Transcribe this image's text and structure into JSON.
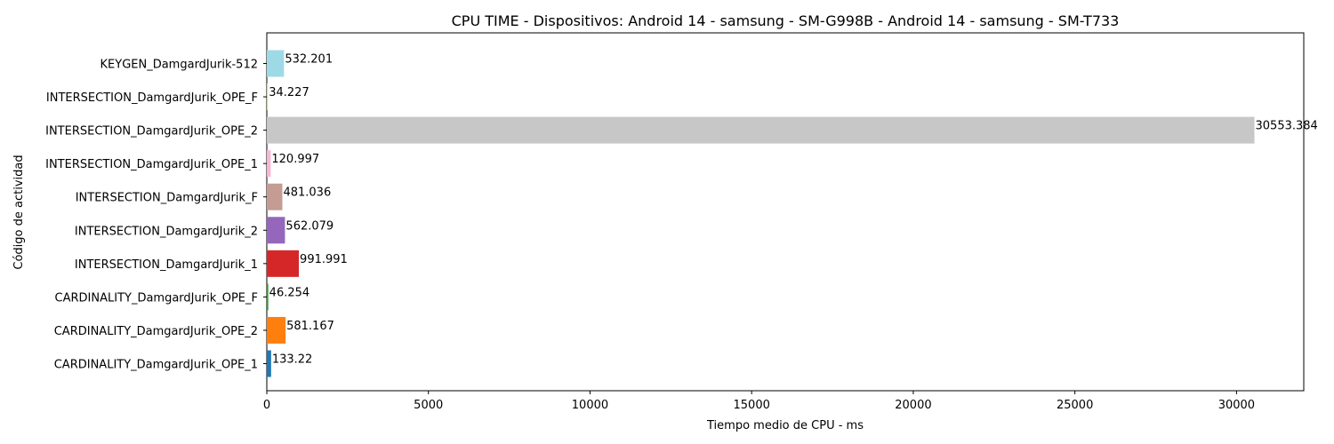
{
  "chart_data": {
    "type": "bar",
    "orientation": "horizontal",
    "title": "CPU TIME - Dispositivos: Android 14 - samsung - SM-G998B - Android 14 - samsung - SM-T733",
    "xlabel": "Tiempo medio de CPU - ms",
    "ylabel": "Código de actividad",
    "xlim": [
      0,
      32080
    ],
    "xticks": [
      0,
      5000,
      10000,
      15000,
      20000,
      25000,
      30000
    ],
    "grid": false,
    "categories": [
      "CARDINALITY_DamgardJurik_OPE_1",
      "CARDINALITY_DamgardJurik_OPE_2",
      "CARDINALITY_DamgardJurik_OPE_F",
      "INTERSECTION_DamgardJurik_1",
      "INTERSECTION_DamgardJurik_2",
      "INTERSECTION_DamgardJurik_F",
      "INTERSECTION_DamgardJurik_OPE_1",
      "INTERSECTION_DamgardJurik_OPE_2",
      "INTERSECTION_DamgardJurik_OPE_F",
      "KEYGEN_DamgardJurik-512"
    ],
    "values": [
      133.22,
      581.167,
      46.254,
      991.991,
      562.079,
      481.036,
      120.997,
      30553.384,
      34.227,
      532.201
    ],
    "value_labels": [
      "133.22",
      "581.167",
      "46.254",
      "991.991",
      "562.079",
      "481.036",
      "120.997",
      "30553.384",
      "34.227",
      "532.201"
    ],
    "colors": [
      "#1f77b4",
      "#ff7f0e",
      "#2ca02c",
      "#d62728",
      "#9467bd",
      "#c49c94",
      "#f7b6d2",
      "#c7c7c7",
      "#dbdb8d",
      "#9edae5"
    ]
  }
}
